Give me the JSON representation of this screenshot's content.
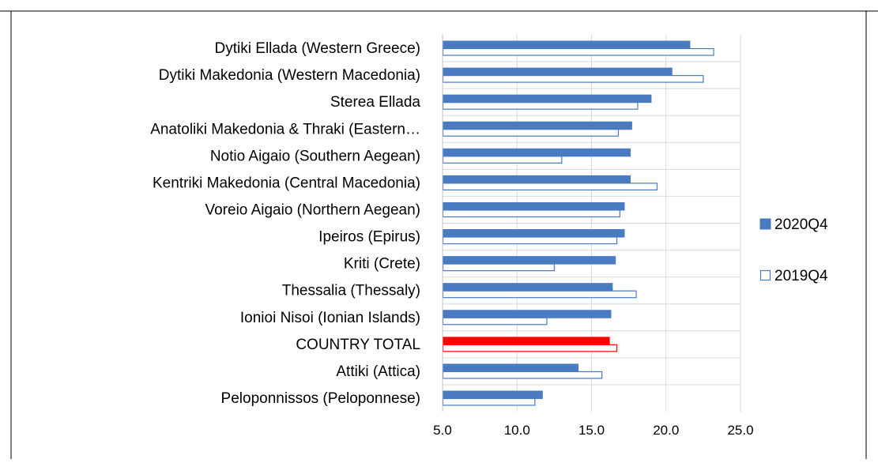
{
  "chart_data": {
    "type": "bar",
    "orientation": "horizontal",
    "categories": [
      "Dytiki Ellada (Western Greece)",
      "Dytiki Makedonia (Western Macedonia)",
      "Sterea Ellada",
      "Anatoliki Makedonia & Thraki (Eastern…",
      "Notio Aigaio (Southern Aegean)",
      "Kentriki Makedonia (Central Macedonia)",
      "Voreio Aigaio (Northern Aegean)",
      "Ipeiros (Epirus)",
      "Kriti (Crete)",
      "Thessalia (Thessaly)",
      "Ionioi Nisoi (Ionian Islands)",
      "COUNTRY TOTAL",
      "Attiki (Attica)",
      "Peloponnissos (Peloponnese)"
    ],
    "highlight_category": "COUNTRY TOTAL",
    "series": [
      {
        "name": "2020Q4",
        "style": "filled",
        "color": "#4a7abf",
        "values": [
          21.6,
          20.4,
          19.0,
          17.7,
          17.6,
          17.6,
          17.2,
          17.2,
          16.6,
          16.4,
          16.3,
          16.2,
          14.1,
          11.7
        ]
      },
      {
        "name": "2019Q4",
        "style": "outline",
        "color": "#4a7abf",
        "values": [
          23.2,
          22.5,
          18.1,
          16.8,
          13.0,
          19.4,
          16.9,
          16.7,
          12.5,
          18.0,
          12.0,
          16.7,
          15.7,
          11.2
        ]
      }
    ],
    "highlight_color": "#ff0000",
    "xlim": [
      5.0,
      25.0
    ],
    "xticks": [
      "5.0",
      "10.0",
      "15.0",
      "20.0",
      "25.0"
    ],
    "xtick_values": [
      5,
      10,
      15,
      20,
      25
    ],
    "grid": "vertical",
    "legend_position": "right",
    "title": "",
    "xlabel": "",
    "ylabel": ""
  }
}
